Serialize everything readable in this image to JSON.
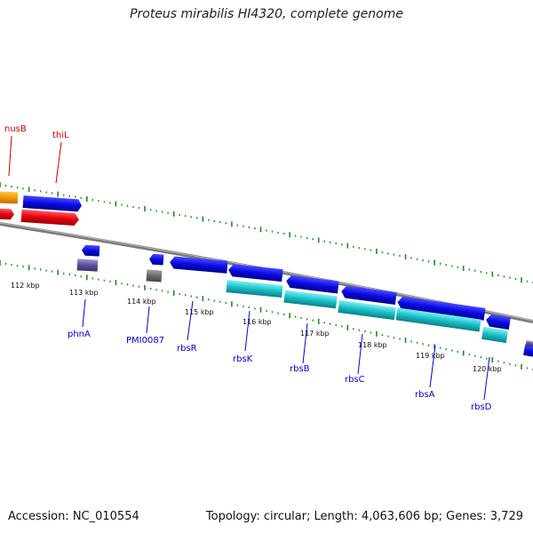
{
  "title": "Proteus mirabilis HI4320, complete genome",
  "footer": {
    "accession": "Accession: NC_010554",
    "summary": "Topology: circular; Length: 4,063,606 bp; Genes: 3,729"
  },
  "colors": {
    "orange": "#f59a00",
    "red": "#e8000c",
    "blue": "#0a0ae6",
    "cyan": "#18c0c8",
    "slate": "#5a4fa0",
    "gray": "#6a6a6a",
    "backbone": "#7a7a7a",
    "ticks": "#1f8a1f",
    "label_red": "#cc0000",
    "label_blue": "#0000cc"
  },
  "kbp_labels": [
    "112 kbp",
    "113 kbp",
    "114 kbp",
    "115 kbp",
    "116 kbp",
    "117 kbp",
    "118 kbp",
    "119 kbp",
    "120 kbp"
  ],
  "gene_labels": {
    "top": [
      "nusB",
      "thiL"
    ],
    "bottom": [
      "phnA",
      "PMI0087",
      "rbsR",
      "rbsK",
      "rbsB",
      "rbsC",
      "rbsA",
      "rbsD"
    ]
  }
}
